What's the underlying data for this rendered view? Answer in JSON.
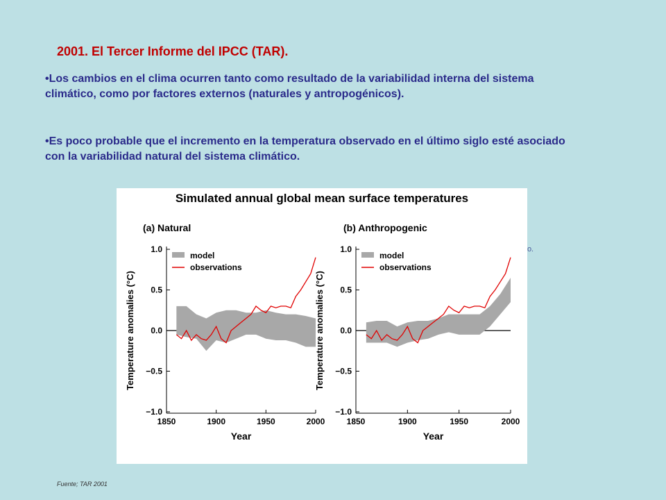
{
  "slide": {
    "title": "2001. El Tercer Informe del IPCC (TAR).",
    "bullets": [
      "•Los cambios en el clima ocurren tanto como resultado de la variabilidad interna del sistema climático, como por factores externos (naturales y antropogénicos).",
      "•Es poco probable que el incremento en la temperatura observado en el último siglo esté asociado con la variabilidad natural del sistema climático."
    ],
    "clipped_text": "ico.",
    "source": "Fuente; TAR 2001"
  },
  "chart_data": [
    {
      "type": "line",
      "title": "Simulated annual global mean surface temperatures",
      "panel_label": "(a) Natural",
      "xlabel": "Year",
      "ylabel": "Temperature anomalies (°C)",
      "xlim": [
        1850,
        2000
      ],
      "ylim": [
        -1.0,
        1.0
      ],
      "xticks": [
        "1850",
        "1900",
        "1950",
        "2000"
      ],
      "yticks": [
        "1.0",
        "0.5",
        "0.0",
        "−0.5",
        "−1.0"
      ],
      "legend": [
        "model",
        "observations"
      ],
      "legend_position": "top-left",
      "colors": {
        "model": "#a8a8a8",
        "observations": "#e00000"
      },
      "series": [
        {
          "name": "observations",
          "x": [
            1860,
            1865,
            1870,
            1875,
            1880,
            1885,
            1890,
            1895,
            1900,
            1905,
            1910,
            1915,
            1920,
            1925,
            1930,
            1935,
            1940,
            1945,
            1950,
            1955,
            1960,
            1965,
            1970,
            1975,
            1980,
            1985,
            1990,
            1995,
            2000
          ],
          "y": [
            -0.05,
            -0.1,
            0.0,
            -0.12,
            -0.05,
            -0.1,
            -0.12,
            -0.05,
            0.05,
            -0.1,
            -0.15,
            0.0,
            0.05,
            0.1,
            0.15,
            0.2,
            0.3,
            0.25,
            0.22,
            0.3,
            0.28,
            0.3,
            0.3,
            0.28,
            0.42,
            0.5,
            0.6,
            0.7,
            0.9
          ]
        },
        {
          "name": "model",
          "x": [
            1860,
            1870,
            1880,
            1890,
            1900,
            1910,
            1920,
            1930,
            1940,
            1950,
            1960,
            1970,
            1980,
            1990,
            2000
          ],
          "y_low": [
            -0.05,
            -0.08,
            -0.1,
            -0.25,
            -0.12,
            -0.15,
            -0.1,
            -0.05,
            -0.05,
            -0.1,
            -0.12,
            -0.12,
            -0.15,
            -0.2,
            -0.2
          ],
          "y_high": [
            0.3,
            0.3,
            0.2,
            0.15,
            0.22,
            0.25,
            0.25,
            0.22,
            0.22,
            0.25,
            0.22,
            0.2,
            0.2,
            0.18,
            0.15
          ]
        }
      ]
    },
    {
      "type": "line",
      "panel_label": "(b) Anthropogenic",
      "xlabel": "Year",
      "ylabel": "Temperature anomalies (°C)",
      "xlim": [
        1850,
        2000
      ],
      "ylim": [
        -1.0,
        1.0
      ],
      "xticks": [
        "1850",
        "1900",
        "1950",
        "2000"
      ],
      "yticks": [
        "1.0",
        "0.5",
        "0.0",
        "−0.5",
        "−1.0"
      ],
      "legend": [
        "model",
        "observations"
      ],
      "legend_position": "top-left",
      "colors": {
        "model": "#a8a8a8",
        "observations": "#e00000"
      },
      "series": [
        {
          "name": "observations",
          "x": [
            1860,
            1865,
            1870,
            1875,
            1880,
            1885,
            1890,
            1895,
            1900,
            1905,
            1910,
            1915,
            1920,
            1925,
            1930,
            1935,
            1940,
            1945,
            1950,
            1955,
            1960,
            1965,
            1970,
            1975,
            1980,
            1985,
            1990,
            1995,
            2000
          ],
          "y": [
            -0.05,
            -0.1,
            0.0,
            -0.12,
            -0.05,
            -0.1,
            -0.12,
            -0.05,
            0.05,
            -0.1,
            -0.15,
            0.0,
            0.05,
            0.1,
            0.15,
            0.2,
            0.3,
            0.25,
            0.22,
            0.3,
            0.28,
            0.3,
            0.3,
            0.28,
            0.42,
            0.5,
            0.6,
            0.7,
            0.9
          ]
        },
        {
          "name": "model",
          "x": [
            1860,
            1870,
            1880,
            1890,
            1900,
            1910,
            1920,
            1930,
            1940,
            1950,
            1960,
            1970,
            1980,
            1990,
            2000
          ],
          "y_low": [
            -0.15,
            -0.15,
            -0.15,
            -0.2,
            -0.15,
            -0.12,
            -0.1,
            -0.05,
            -0.02,
            -0.05,
            -0.05,
            -0.05,
            0.05,
            0.2,
            0.35
          ],
          "y_high": [
            0.1,
            0.12,
            0.12,
            0.05,
            0.1,
            0.12,
            0.12,
            0.15,
            0.2,
            0.2,
            0.2,
            0.2,
            0.3,
            0.45,
            0.65
          ]
        }
      ]
    }
  ]
}
